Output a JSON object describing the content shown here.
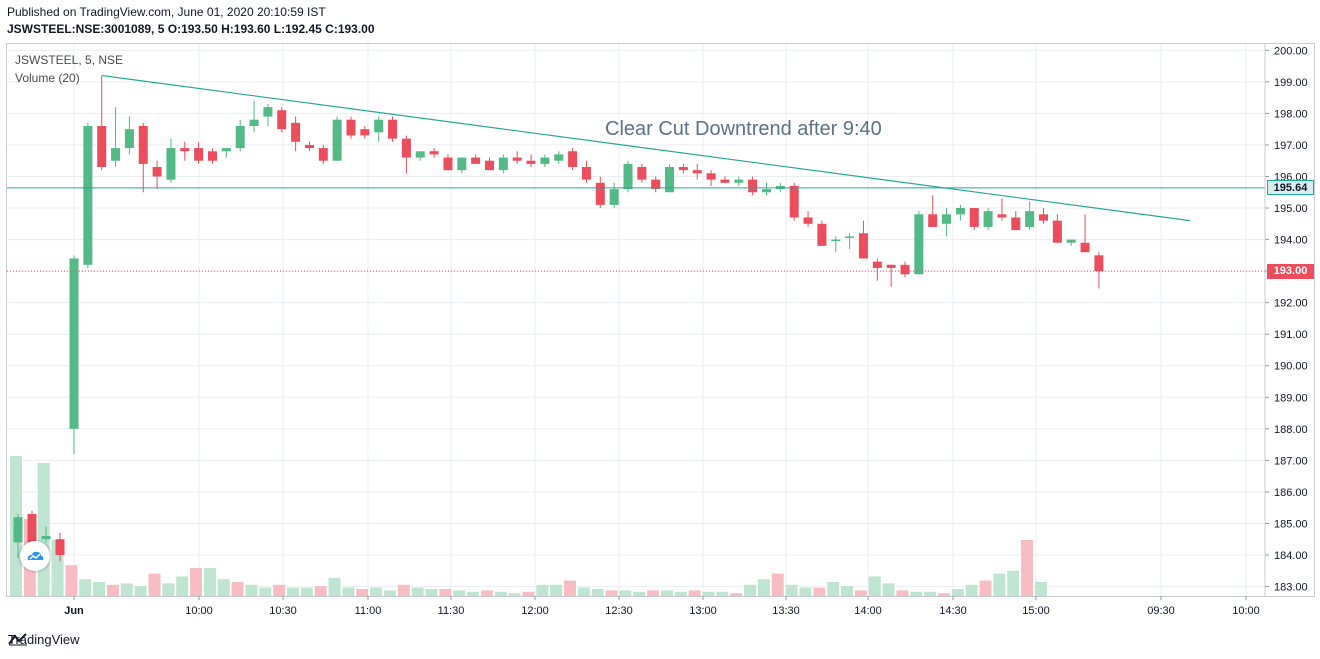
{
  "header": {
    "published": "Published on TradingView.com, June 01, 2020 20:10:59 IST",
    "ohlc": "JSWSTEEL:NSE:3001089, 5 O:193.50 H:193.60 L:192.45 C:193.00"
  },
  "legend": {
    "symbol": "JSWSTEEL, 5, NSE",
    "volume": "Volume (20)"
  },
  "annotation": "Clear Cut Downtrend after 9:40",
  "footer": {
    "brand": "TradingView"
  },
  "colors": {
    "up": "#53b987",
    "down": "#eb4d5c",
    "up_vol": "#bfe4d2",
    "down_vol": "#f7bdc3",
    "trend": "#26a69a",
    "hline": "#26a69a",
    "price_line": "#eb4d5c",
    "grid": "#eaedf2"
  },
  "chart_data": {
    "type": "candlestick",
    "symbol": "JSWSTEEL:NSE:3001089",
    "interval": "5",
    "price_axis": {
      "min": 182.7,
      "max": 200.2,
      "ticks": [
        "200.00",
        "199.00",
        "198.00",
        "197.00",
        "196.00",
        "195.00",
        "194.00",
        "193.00",
        "192.00",
        "191.00",
        "190.00",
        "189.00",
        "188.00",
        "187.00",
        "186.00",
        "185.00",
        "184.00",
        "183.00"
      ]
    },
    "time_axis": {
      "labels": [
        "Jun",
        "10:00",
        "10:30",
        "11:00",
        "11:30",
        "12:00",
        "12:30",
        "13:00",
        "13:30",
        "14:00",
        "14:30",
        "15:00",
        "09:30",
        "10:00"
      ]
    },
    "last_price": {
      "value": 193.0,
      "label": "193.00"
    },
    "horizontal_line": {
      "value": 195.64,
      "label": "195.64"
    },
    "trendline": {
      "from": {
        "bar": 0,
        "price": 199.2
      },
      "to": {
        "bar": 40.5,
        "price": 194.6
      }
    },
    "candles": [
      {
        "o": 188.0,
        "h": 193.5,
        "l": 187.2,
        "c": 193.4
      },
      {
        "o": 193.2,
        "h": 197.7,
        "l": 193.1,
        "c": 197.6
      },
      {
        "o": 197.6,
        "h": 199.2,
        "l": 196.2,
        "c": 196.3
      },
      {
        "o": 196.5,
        "h": 198.2,
        "l": 196.3,
        "c": 196.9
      },
      {
        "o": 196.9,
        "h": 197.9,
        "l": 196.7,
        "c": 197.5
      },
      {
        "o": 197.6,
        "h": 197.7,
        "l": 195.5,
        "c": 196.4
      },
      {
        "o": 196.3,
        "h": 196.5,
        "l": 195.6,
        "c": 196.0
      },
      {
        "o": 195.9,
        "h": 197.2,
        "l": 195.8,
        "c": 196.9
      },
      {
        "o": 196.9,
        "h": 197.1,
        "l": 196.5,
        "c": 196.8
      },
      {
        "o": 196.9,
        "h": 197.1,
        "l": 196.4,
        "c": 196.5
      },
      {
        "o": 196.8,
        "h": 196.9,
        "l": 196.4,
        "c": 196.5
      },
      {
        "o": 196.8,
        "h": 196.9,
        "l": 196.6,
        "c": 196.9
      },
      {
        "o": 196.9,
        "h": 197.8,
        "l": 196.8,
        "c": 197.6
      },
      {
        "o": 197.6,
        "h": 198.4,
        "l": 197.4,
        "c": 197.8
      },
      {
        "o": 197.9,
        "h": 198.3,
        "l": 197.6,
        "c": 198.2
      },
      {
        "o": 198.1,
        "h": 198.2,
        "l": 197.4,
        "c": 197.5
      },
      {
        "o": 197.7,
        "h": 197.9,
        "l": 196.8,
        "c": 197.1
      },
      {
        "o": 197.0,
        "h": 197.1,
        "l": 196.8,
        "c": 196.9
      },
      {
        "o": 196.9,
        "h": 197.0,
        "l": 196.4,
        "c": 196.5
      },
      {
        "o": 196.5,
        "h": 197.9,
        "l": 196.5,
        "c": 197.8
      },
      {
        "o": 197.8,
        "h": 197.9,
        "l": 197.2,
        "c": 197.3
      },
      {
        "o": 197.5,
        "h": 197.6,
        "l": 197.2,
        "c": 197.3
      },
      {
        "o": 197.4,
        "h": 197.9,
        "l": 197.1,
        "c": 197.8
      },
      {
        "o": 197.8,
        "h": 197.9,
        "l": 197.1,
        "c": 197.2
      },
      {
        "o": 197.2,
        "h": 197.3,
        "l": 196.1,
        "c": 196.6
      },
      {
        "o": 196.6,
        "h": 196.8,
        "l": 196.5,
        "c": 196.8
      },
      {
        "o": 196.8,
        "h": 196.9,
        "l": 196.6,
        "c": 196.7
      },
      {
        "o": 196.6,
        "h": 196.7,
        "l": 196.2,
        "c": 196.2
      },
      {
        "o": 196.2,
        "h": 196.6,
        "l": 196.1,
        "c": 196.6
      },
      {
        "o": 196.6,
        "h": 196.7,
        "l": 196.4,
        "c": 196.4
      },
      {
        "o": 196.5,
        "h": 196.6,
        "l": 196.2,
        "c": 196.2
      },
      {
        "o": 196.2,
        "h": 196.7,
        "l": 196.1,
        "c": 196.6
      },
      {
        "o": 196.6,
        "h": 196.8,
        "l": 196.4,
        "c": 196.5
      },
      {
        "o": 196.5,
        "h": 196.7,
        "l": 196.3,
        "c": 196.4
      },
      {
        "o": 196.4,
        "h": 196.7,
        "l": 196.3,
        "c": 196.6
      },
      {
        "o": 196.5,
        "h": 196.8,
        "l": 196.4,
        "c": 196.7
      },
      {
        "o": 196.8,
        "h": 196.9,
        "l": 196.2,
        "c": 196.3
      },
      {
        "o": 196.3,
        "h": 196.5,
        "l": 195.8,
        "c": 195.9
      }
    ],
    "candles_b": [
      {
        "o": 195.8,
        "h": 196.0,
        "l": 195.0,
        "c": 195.1
      },
      {
        "o": 195.1,
        "h": 195.8,
        "l": 195.0,
        "c": 195.6
      },
      {
        "o": 195.6,
        "h": 196.5,
        "l": 195.5,
        "c": 196.4
      },
      {
        "o": 196.3,
        "h": 196.4,
        "l": 195.8,
        "c": 195.9
      },
      {
        "o": 195.9,
        "h": 196.0,
        "l": 195.5,
        "c": 195.6
      },
      {
        "o": 195.5,
        "h": 196.4,
        "l": 195.5,
        "c": 196.3
      },
      {
        "o": 196.3,
        "h": 196.4,
        "l": 196.1,
        "c": 196.2
      },
      {
        "o": 196.2,
        "h": 196.4,
        "l": 195.9,
        "c": 196.1
      },
      {
        "o": 196.1,
        "h": 196.2,
        "l": 195.7,
        "c": 195.9
      },
      {
        "o": 195.9,
        "h": 196.0,
        "l": 195.8,
        "c": 195.8
      },
      {
        "o": 195.8,
        "h": 196.0,
        "l": 195.7,
        "c": 195.9
      },
      {
        "o": 195.9,
        "h": 196.0,
        "l": 195.4,
        "c": 195.5
      },
      {
        "o": 195.5,
        "h": 195.8,
        "l": 195.4,
        "c": 195.6
      },
      {
        "o": 195.6,
        "h": 195.8,
        "l": 195.5,
        "c": 195.7
      },
      {
        "o": 195.7,
        "h": 195.8,
        "l": 194.6,
        "c": 194.7
      },
      {
        "o": 194.7,
        "h": 194.9,
        "l": 194.4,
        "c": 194.5
      },
      {
        "o": 194.5,
        "h": 194.6,
        "l": 193.8,
        "c": 193.8
      },
      {
        "o": 194.0,
        "h": 194.1,
        "l": 193.6,
        "c": 194.0
      },
      {
        "o": 194.1,
        "h": 194.2,
        "l": 193.7,
        "c": 194.1
      },
      {
        "o": 194.2,
        "h": 194.6,
        "l": 193.4,
        "c": 193.4
      },
      {
        "o": 193.3,
        "h": 193.4,
        "l": 192.7,
        "c": 193.1
      },
      {
        "o": 193.2,
        "h": 193.2,
        "l": 192.5,
        "c": 193.1
      },
      {
        "o": 193.2,
        "h": 193.3,
        "l": 192.8,
        "c": 192.9
      },
      {
        "o": 192.9,
        "h": 194.9,
        "l": 192.9,
        "c": 194.8
      },
      {
        "o": 194.8,
        "h": 195.4,
        "l": 194.4,
        "c": 194.4
      },
      {
        "o": 194.5,
        "h": 195.0,
        "l": 194.1,
        "c": 194.8
      },
      {
        "o": 194.8,
        "h": 195.1,
        "l": 194.6,
        "c": 195.0
      },
      {
        "o": 195.0,
        "h": 195.0,
        "l": 194.3,
        "c": 194.4
      },
      {
        "o": 194.4,
        "h": 195.0,
        "l": 194.3,
        "c": 194.9
      },
      {
        "o": 194.8,
        "h": 195.3,
        "l": 194.6,
        "c": 194.7
      },
      {
        "o": 194.7,
        "h": 194.9,
        "l": 194.3,
        "c": 194.3
      },
      {
        "o": 194.4,
        "h": 195.2,
        "l": 194.3,
        "c": 194.9
      },
      {
        "o": 194.8,
        "h": 195.0,
        "l": 194.5,
        "c": 194.6
      },
      {
        "o": 194.6,
        "h": 194.8,
        "l": 193.9,
        "c": 193.9
      },
      {
        "o": 193.9,
        "h": 194.0,
        "l": 193.8,
        "c": 194.0
      },
      {
        "o": 193.9,
        "h": 194.8,
        "l": 193.6,
        "c": 193.6
      },
      {
        "o": 193.5,
        "h": 193.6,
        "l": 192.45,
        "c": 193.0
      }
    ],
    "volume": {
      "scale_max": 100,
      "values": [
        100,
        55,
        95,
        40,
        22,
        12,
        10,
        8,
        9,
        7,
        16,
        9,
        14,
        20,
        20,
        12,
        10,
        8,
        6,
        8,
        6,
        6,
        7,
        13,
        6,
        5,
        6,
        4,
        8,
        6,
        5,
        5,
        4,
        3,
        4,
        3,
        2,
        3,
        8,
        8,
        11,
        6,
        5,
        4,
        4,
        3,
        4,
        4,
        3,
        4,
        3,
        3,
        2,
        8,
        12,
        16,
        8,
        6,
        6,
        10,
        7,
        4,
        14,
        9,
        4,
        3,
        3,
        2,
        5,
        8,
        11,
        16,
        18,
        40,
        10
      ]
    }
  }
}
